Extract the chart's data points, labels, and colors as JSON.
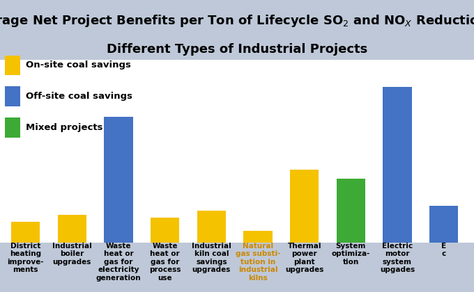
{
  "categories": [
    "District\nheating\nimprove-\nments",
    "Industrial\nboiler\nupgrades",
    "Waste\nheat or\ngas for\nelectricity\ngeneration",
    "Waste\nheat or\ngas for\nprocess\nuse",
    "Industrial\nkiln coal\nsavings\nupgrades",
    "Natural\ngas substi-\ntution in\nindustrial\nkilns",
    "Thermal\npower\nplant\nupgrades",
    "System\noptimiza-\ntion",
    "Electric\nmotor\nsystem\nupgades",
    "E\nc"
  ],
  "values": [
    9,
    12,
    55,
    11,
    14,
    5,
    32,
    28,
    68,
    16
  ],
  "bar_colors": [
    "#F5C200",
    "#F5C200",
    "#4472C4",
    "#F5C200",
    "#F5C200",
    "#F5C200",
    "#F5C200",
    "#3DAA35",
    "#4472C4",
    "#4472C4"
  ],
  "special_label_idx": 5,
  "special_label_color": "#CC8800",
  "legend_items": [
    {
      "label": "On-site coal savings",
      "color": "#F5C200"
    },
    {
      "label": "Off-site coal savings",
      "color": "#4472C4"
    },
    {
      "label": "Mixed projects",
      "color": "#3DAA35"
    }
  ],
  "title_bg": "#CDD5E5",
  "plot_bg": "#FFFFFF",
  "outer_bg": "#BEC8D8",
  "grid_color": "#CCCCCC",
  "ylim_max": 80,
  "bar_width": 0.62,
  "title_fontsize": 13,
  "label_fontsize": 7.5,
  "legend_fontsize": 9.5
}
